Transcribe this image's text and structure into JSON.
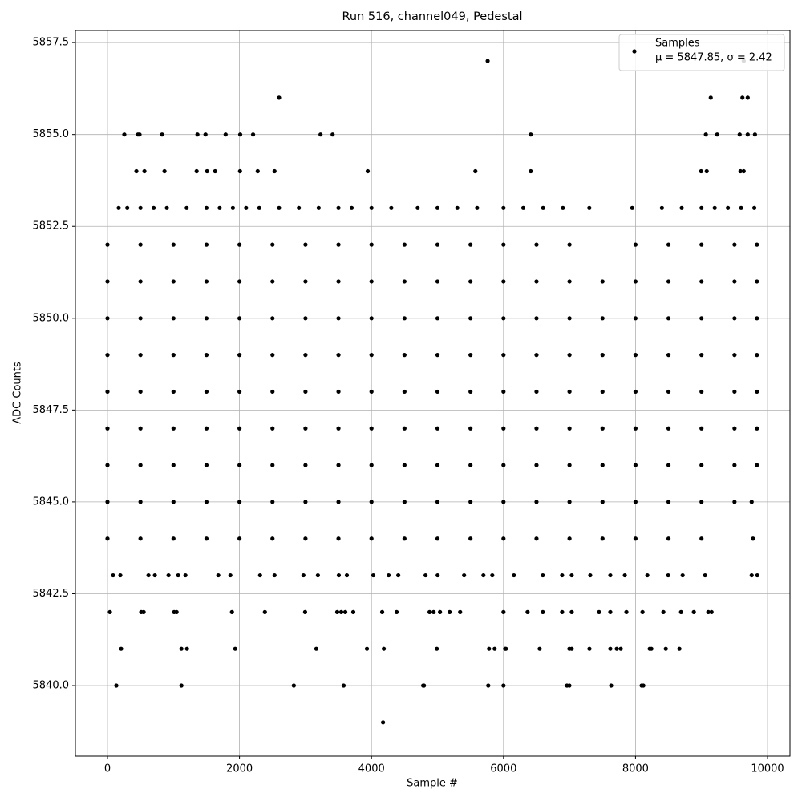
{
  "chart_data": {
    "type": "scatter",
    "title": "Run 516, channel049, Pedestal",
    "x_label": "Sample #",
    "y_label": "ADC Counts",
    "xlim": [
      -486,
      10340
    ],
    "ylim": [
      5838.08,
      5857.83
    ],
    "xticks": [
      0,
      2000,
      4000,
      6000,
      8000,
      10000
    ],
    "yticks": [
      {
        "value": 5840,
        "label": "5840.0"
      },
      5842.5,
      {
        "value": 5845,
        "label": "5845.0"
      },
      5847.5,
      {
        "value": 5850,
        "label": "5850.0"
      },
      5852.5,
      {
        "value": 5855,
        "label": "5855.0"
      },
      5857.5
    ],
    "grid": true,
    "legend": "upper right",
    "legend_text": "μ = 5847.85, σ = 2.42",
    "series": [
      {
        "name": "Samples",
        "color": "#000000",
        "x": [
          5760,
          9640,
          2600,
          9140,
          9620,
          9700,
          255,
          462,
          486,
          827,
          1363,
          1485,
          1790,
          2011,
          2206,
          3228,
          3411,
          6413,
          9066,
          9237,
          9578,
          9700,
          9810,
          438,
          560,
          864,
          1351,
          1509,
          1631,
          2008,
          2276,
          2531,
          3943,
          5574,
          6413,
          8994,
          9079,
          9590,
          9639,
          170,
          300,
          500,
          700,
          900,
          1200,
          1500,
          1700,
          1900,
          2100,
          2300,
          2600,
          2900,
          3200,
          3500,
          3700,
          4000,
          4300,
          4700,
          5000,
          5300,
          5600,
          6000,
          6300,
          6600,
          6900,
          7300,
          7950,
          8400,
          8700,
          9000,
          9200,
          9400,
          9600,
          9800,
          0,
          500,
          1000,
          1500,
          2000,
          2500,
          3000,
          3500,
          4000,
          4500,
          5000,
          5500,
          6000,
          6500,
          7000,
          8000,
          8500,
          9000,
          9500,
          9840,
          0,
          500,
          1000,
          1500,
          2000,
          2500,
          3000,
          3500,
          4000,
          4500,
          5000,
          5500,
          6000,
          6500,
          7000,
          7500,
          8000,
          8500,
          9000,
          9500,
          9840,
          0,
          500,
          1000,
          1500,
          2000,
          2500,
          3000,
          3500,
          4000,
          4500,
          5000,
          5500,
          6000,
          6500,
          7000,
          7500,
          8000,
          8500,
          9000,
          9500,
          9840,
          0,
          500,
          1000,
          1500,
          2000,
          2500,
          3000,
          3500,
          4000,
          4500,
          5000,
          5500,
          6000,
          6500,
          7000,
          7500,
          8000,
          8500,
          9000,
          9500,
          9840,
          0,
          500,
          1000,
          1500,
          2000,
          2500,
          3000,
          3500,
          4000,
          4500,
          5000,
          5500,
          6000,
          6500,
          7000,
          7500,
          8000,
          8500,
          9000,
          9500,
          9840,
          0,
          500,
          1000,
          1500,
          2000,
          2500,
          3000,
          3500,
          4000,
          4500,
          5000,
          5500,
          6000,
          6500,
          7000,
          7500,
          8000,
          8500,
          9000,
          9500,
          9840,
          0,
          500,
          1000,
          1500,
          2000,
          2500,
          3000,
          3500,
          4000,
          4500,
          5000,
          5500,
          6000,
          6500,
          7000,
          7500,
          8000,
          8500,
          9000,
          9500,
          9840,
          0,
          500,
          1000,
          1500,
          2000,
          2500,
          3000,
          3500,
          4000,
          4500,
          5000,
          5500,
          6000,
          6500,
          7000,
          7500,
          8000,
          8500,
          9000,
          9500,
          9760,
          0,
          500,
          1000,
          1500,
          2000,
          2500,
          3000,
          3500,
          4000,
          4500,
          5000,
          5500,
          6000,
          6500,
          7000,
          7500,
          8000,
          8500,
          9000,
          9780,
          85,
          195,
          621,
          718,
          925,
          1071,
          1181,
          1679,
          1862,
          2312,
          2531,
          2969,
          3188,
          3505,
          3627,
          4028,
          4260,
          4406,
          4819,
          5002,
          5403,
          5696,
          5830,
          6158,
          6596,
          6888,
          7034,
          7314,
          7618,
          7838,
          8179,
          8495,
          8714,
          9054,
          9760,
          9845,
          37,
          511,
          548,
          1010,
          1047,
          1886,
          2385,
          2994,
          3481,
          3542,
          3603,
          3724,
          4162,
          4381,
          4880,
          4941,
          5038,
          5184,
          5343,
          6000,
          6365,
          6596,
          6888,
          7034,
          7448,
          7618,
          7862,
          8106,
          8422,
          8690,
          8884,
          9103,
          9152,
          207,
          1120,
          1205,
          1935,
          3164,
          3931,
          4187,
          4990,
          5781,
          5866,
          6024,
          6037,
          6548,
          6998,
          7034,
          7302,
          7618,
          7716,
          7777,
          8215,
          8240,
          8459,
          8665,
          134,
          1120,
          2823,
          3578,
          4783,
          4795,
          5769,
          6000,
          6961,
          6998,
          7631,
          8093,
          8118,
          4175
        ],
        "values": [
          5857,
          5857,
          5856,
          5856,
          5856,
          5856,
          5855,
          5855,
          5855,
          5855,
          5855,
          5855,
          5855,
          5855,
          5855,
          5855,
          5855,
          5855,
          5855,
          5855,
          5855,
          5855,
          5855,
          5854,
          5854,
          5854,
          5854,
          5854,
          5854,
          5854,
          5854,
          5854,
          5854,
          5854,
          5854,
          5854,
          5854,
          5854,
          5854,
          5853,
          5853,
          5853,
          5853,
          5853,
          5853,
          5853,
          5853,
          5853,
          5853,
          5853,
          5853,
          5853,
          5853,
          5853,
          5853,
          5853,
          5853,
          5853,
          5853,
          5853,
          5853,
          5853,
          5853,
          5853,
          5853,
          5853,
          5853,
          5853,
          5853,
          5853,
          5853,
          5853,
          5853,
          5853,
          5852,
          5852,
          5852,
          5852,
          5852,
          5852,
          5852,
          5852,
          5852,
          5852,
          5852,
          5852,
          5852,
          5852,
          5852,
          5852,
          5852,
          5852,
          5852,
          5852,
          5851,
          5851,
          5851,
          5851,
          5851,
          5851,
          5851,
          5851,
          5851,
          5851,
          5851,
          5851,
          5851,
          5851,
          5851,
          5851,
          5851,
          5851,
          5851,
          5851,
          5851,
          5850,
          5850,
          5850,
          5850,
          5850,
          5850,
          5850,
          5850,
          5850,
          5850,
          5850,
          5850,
          5850,
          5850,
          5850,
          5850,
          5850,
          5850,
          5850,
          5850,
          5850,
          5849,
          5849,
          5849,
          5849,
          5849,
          5849,
          5849,
          5849,
          5849,
          5849,
          5849,
          5849,
          5849,
          5849,
          5849,
          5849,
          5849,
          5849,
          5849,
          5849,
          5849,
          5848,
          5848,
          5848,
          5848,
          5848,
          5848,
          5848,
          5848,
          5848,
          5848,
          5848,
          5848,
          5848,
          5848,
          5848,
          5848,
          5848,
          5848,
          5848,
          5848,
          5848,
          5847,
          5847,
          5847,
          5847,
          5847,
          5847,
          5847,
          5847,
          5847,
          5847,
          5847,
          5847,
          5847,
          5847,
          5847,
          5847,
          5847,
          5847,
          5847,
          5847,
          5847,
          5846,
          5846,
          5846,
          5846,
          5846,
          5846,
          5846,
          5846,
          5846,
          5846,
          5846,
          5846,
          5846,
          5846,
          5846,
          5846,
          5846,
          5846,
          5846,
          5846,
          5846,
          5845,
          5845,
          5845,
          5845,
          5845,
          5845,
          5845,
          5845,
          5845,
          5845,
          5845,
          5845,
          5845,
          5845,
          5845,
          5845,
          5845,
          5845,
          5845,
          5845,
          5845,
          5844,
          5844,
          5844,
          5844,
          5844,
          5844,
          5844,
          5844,
          5844,
          5844,
          5844,
          5844,
          5844,
          5844,
          5844,
          5844,
          5844,
          5844,
          5844,
          5844,
          5843,
          5843,
          5843,
          5843,
          5843,
          5843,
          5843,
          5843,
          5843,
          5843,
          5843,
          5843,
          5843,
          5843,
          5843,
          5843,
          5843,
          5843,
          5843,
          5843,
          5843,
          5843,
          5843,
          5843,
          5843,
          5843,
          5843,
          5843,
          5843,
          5843,
          5843,
          5843,
          5843,
          5843,
          5843,
          5843,
          5842,
          5842,
          5842,
          5842,
          5842,
          5842,
          5842,
          5842,
          5842,
          5842,
          5842,
          5842,
          5842,
          5842,
          5842,
          5842,
          5842,
          5842,
          5842,
          5842,
          5842,
          5842,
          5842,
          5842,
          5842,
          5842,
          5842,
          5842,
          5842,
          5842,
          5842,
          5842,
          5842,
          5841,
          5841,
          5841,
          5841,
          5841,
          5841,
          5841,
          5841,
          5841,
          5841,
          5841,
          5841,
          5841,
          5841,
          5841,
          5841,
          5841,
          5841,
          5841,
          5841,
          5841,
          5841,
          5841,
          5840,
          5840,
          5840,
          5840,
          5840,
          5840,
          5840,
          5840,
          5840,
          5840,
          5840,
          5840,
          5840,
          5839
        ]
      }
    ]
  }
}
